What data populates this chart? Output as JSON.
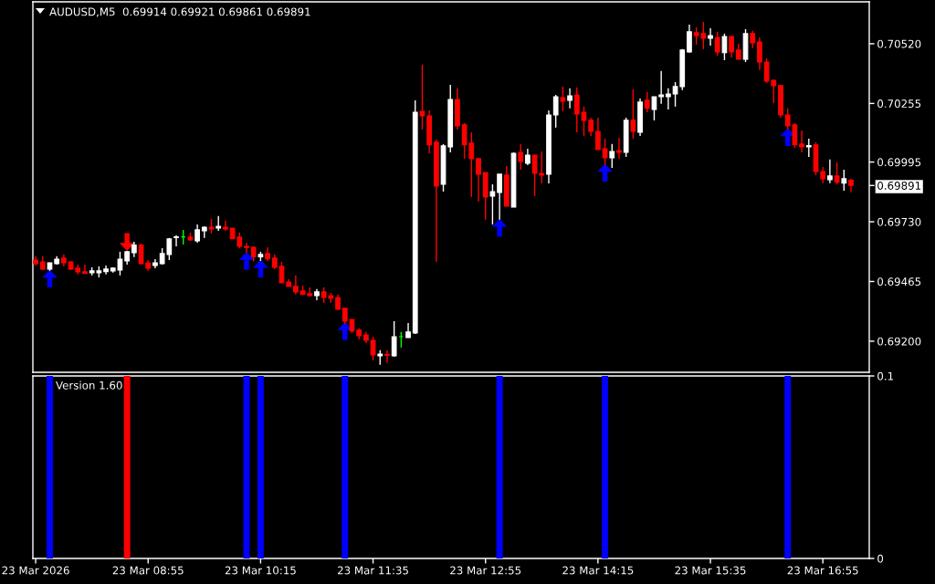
{
  "chart_data": [
    {
      "type": "candlestick",
      "title": "AUDUSD,M5  0.69914 0.69921 0.69861 0.69891",
      "x": [
        "2026-03-23T07:35",
        "2026-03-23T07:40",
        "2026-03-23T07:45",
        "2026-03-23T07:50",
        "2026-03-23T07:55",
        "2026-03-23T08:00",
        "2026-03-23T08:05",
        "2026-03-23T08:10",
        "2026-03-23T08:15",
        "2026-03-23T08:20",
        "2026-03-23T08:25",
        "2026-03-23T08:30",
        "2026-03-23T08:35",
        "2026-03-23T08:40",
        "2026-03-23T08:45",
        "2026-03-23T08:50",
        "2026-03-23T08:55",
        "2026-03-23T09:00",
        "2026-03-23T09:05",
        "2026-03-23T09:10",
        "2026-03-23T09:15",
        "2026-03-23T09:20",
        "2026-03-23T09:25",
        "2026-03-23T09:30",
        "2026-03-23T09:35",
        "2026-03-23T09:40",
        "2026-03-23T09:45",
        "2026-03-23T09:50",
        "2026-03-23T09:55",
        "2026-03-23T10:00",
        "2026-03-23T10:05",
        "2026-03-23T10:10",
        "2026-03-23T10:15",
        "2026-03-23T10:20",
        "2026-03-23T10:25",
        "2026-03-23T10:30",
        "2026-03-23T10:35",
        "2026-03-23T10:40",
        "2026-03-23T10:45",
        "2026-03-23T10:50",
        "2026-03-23T10:55",
        "2026-03-23T11:00",
        "2026-03-23T11:05",
        "2026-03-23T11:10",
        "2026-03-23T11:15",
        "2026-03-23T11:20",
        "2026-03-23T11:25",
        "2026-03-23T11:30",
        "2026-03-23T11:35",
        "2026-03-23T11:40",
        "2026-03-23T11:45",
        "2026-03-23T11:50",
        "2026-03-23T11:55",
        "2026-03-23T12:00",
        "2026-03-23T12:05",
        "2026-03-23T12:10",
        "2026-03-23T12:15",
        "2026-03-23T12:20",
        "2026-03-23T12:25",
        "2026-03-23T12:30",
        "2026-03-23T12:35",
        "2026-03-23T12:40",
        "2026-03-23T12:45",
        "2026-03-23T12:50",
        "2026-03-23T12:55",
        "2026-03-23T13:00",
        "2026-03-23T13:05",
        "2026-03-23T13:10",
        "2026-03-23T13:15",
        "2026-03-23T13:20",
        "2026-03-23T13:25",
        "2026-03-23T13:30",
        "2026-03-23T13:35",
        "2026-03-23T13:40",
        "2026-03-23T13:45",
        "2026-03-23T13:50",
        "2026-03-23T13:55",
        "2026-03-23T14:00",
        "2026-03-23T14:05",
        "2026-03-23T14:10",
        "2026-03-23T14:15",
        "2026-03-23T14:20",
        "2026-03-23T14:25",
        "2026-03-23T14:30",
        "2026-03-23T14:35",
        "2026-03-23T14:40",
        "2026-03-23T14:45",
        "2026-03-23T14:50",
        "2026-03-23T14:55",
        "2026-03-23T15:00",
        "2026-03-23T15:05",
        "2026-03-23T15:10",
        "2026-03-23T15:15",
        "2026-03-23T15:20",
        "2026-03-23T15:25",
        "2026-03-23T15:30",
        "2026-03-23T15:35",
        "2026-03-23T15:40",
        "2026-03-23T15:45",
        "2026-03-23T15:50",
        "2026-03-23T15:55",
        "2026-03-23T16:00",
        "2026-03-23T16:05",
        "2026-03-23T16:10",
        "2026-03-23T16:15",
        "2026-03-23T16:20",
        "2026-03-23T16:25",
        "2026-03-23T16:30",
        "2026-03-23T16:35",
        "2026-03-23T16:40",
        "2026-03-23T16:45",
        "2026-03-23T16:50",
        "2026-03-23T16:55",
        "2026-03-23T17:00",
        "2026-03-23T17:05",
        "2026-03-23T17:10",
        "2026-03-23T17:15"
      ],
      "ohlc": [
        [
          0.6956,
          0.69577,
          0.69536,
          0.69544
        ],
        [
          0.69552,
          0.69577,
          0.69516,
          0.6952
        ],
        [
          0.6952,
          0.69549,
          0.69512,
          0.69548
        ],
        [
          0.69544,
          0.69577,
          0.6954,
          0.69564
        ],
        [
          0.69569,
          0.69585,
          0.69532,
          0.69548
        ],
        [
          0.69552,
          0.69556,
          0.69516,
          0.6952
        ],
        [
          0.69524,
          0.6954,
          0.69496,
          0.69508
        ],
        [
          0.69508,
          0.6954,
          0.695,
          0.69501
        ],
        [
          0.69504,
          0.69528,
          0.69492,
          0.69512
        ],
        [
          0.69504,
          0.69532,
          0.69483,
          0.69512
        ],
        [
          0.69509,
          0.69536,
          0.69496,
          0.6952
        ],
        [
          0.69512,
          0.69528,
          0.69504,
          0.69524
        ],
        [
          0.69516,
          0.69597,
          0.69492,
          0.69564
        ],
        [
          0.69556,
          0.69601,
          0.6954,
          0.69597
        ],
        [
          0.69593,
          0.69641,
          0.69573,
          0.69627
        ],
        [
          0.69627,
          0.69633,
          0.6954,
          0.69544
        ],
        [
          0.69548,
          0.6956,
          0.69512,
          0.69524
        ],
        [
          0.69536,
          0.69564,
          0.69524,
          0.69548
        ],
        [
          0.69544,
          0.69613,
          0.6954,
          0.69589
        ],
        [
          0.69585,
          0.69658,
          0.6956,
          0.69654
        ],
        [
          0.6966,
          0.6967,
          0.69621,
          0.69663
        ],
        [
          0.69663,
          0.69694,
          0.69629,
          0.69663
        ],
        [
          0.69662,
          0.69682,
          0.69645,
          0.69649
        ],
        [
          0.69645,
          0.69718,
          0.69637,
          0.69694
        ],
        [
          0.6969,
          0.6971,
          0.69658,
          0.69706
        ],
        [
          0.69706,
          0.69743,
          0.69678,
          0.69698
        ],
        [
          0.69702,
          0.69755,
          0.6969,
          0.6971
        ],
        [
          0.69706,
          0.69735,
          0.6969,
          0.69698
        ],
        [
          0.69702,
          0.69702,
          0.69654,
          0.69654
        ],
        [
          0.69662,
          0.69682,
          0.69613,
          0.69621
        ],
        [
          0.69621,
          0.69637,
          0.69591,
          0.69616
        ],
        [
          0.69617,
          0.69621,
          0.69554,
          0.69574
        ],
        [
          0.69574,
          0.69597,
          0.69556,
          0.69585
        ],
        [
          0.69589,
          0.69617,
          0.69556,
          0.69565
        ],
        [
          0.69569,
          0.69585,
          0.6952,
          0.69528
        ],
        [
          0.69532,
          0.69552,
          0.69459,
          0.69459
        ],
        [
          0.69463,
          0.69475,
          0.69443,
          0.69443
        ],
        [
          0.69443,
          0.69492,
          0.69407,
          0.69419
        ],
        [
          0.69423,
          0.69447,
          0.69407,
          0.69407
        ],
        [
          0.69411,
          0.69439,
          0.69398,
          0.69402
        ],
        [
          0.69402,
          0.69431,
          0.69382,
          0.69419
        ],
        [
          0.69419,
          0.69439,
          0.6937,
          0.69394
        ],
        [
          0.69402,
          0.69415,
          0.6937,
          0.6939
        ],
        [
          0.69394,
          0.69407,
          0.69338,
          0.69342
        ],
        [
          0.69346,
          0.69346,
          0.69277,
          0.69289
        ],
        [
          0.69297,
          0.69297,
          0.69236,
          0.69245
        ],
        [
          0.69249,
          0.69257,
          0.69208,
          0.69224
        ],
        [
          0.69228,
          0.69241,
          0.69192,
          0.69204
        ],
        [
          0.69204,
          0.6922,
          0.69115,
          0.69139
        ],
        [
          0.69135,
          0.6916,
          0.69095,
          0.69143
        ],
        [
          0.69142,
          0.6916,
          0.69103,
          0.69137
        ],
        [
          0.69135,
          0.69289,
          0.69131,
          0.6922
        ],
        [
          0.6922,
          0.69241,
          0.69172,
          0.6922
        ],
        [
          0.69216,
          0.69281,
          0.69216,
          0.69241
        ],
        [
          0.69236,
          0.70269,
          0.69232,
          0.70216
        ],
        [
          0.7022,
          0.70427,
          0.70139,
          0.702
        ],
        [
          0.702,
          0.70224,
          0.70034,
          0.70071
        ],
        [
          0.70083,
          0.70095,
          0.69552,
          0.69888
        ],
        [
          0.69896,
          0.70075,
          0.69864,
          0.70067
        ],
        [
          0.70062,
          0.70338,
          0.70038,
          0.70273
        ],
        [
          0.70273,
          0.70322,
          0.70139,
          0.70156
        ],
        [
          0.7016,
          0.70168,
          0.7001,
          0.70071
        ],
        [
          0.70079,
          0.70127,
          0.6984,
          0.7001
        ],
        [
          0.7001,
          0.7001,
          0.6982,
          0.69941
        ],
        [
          0.69949,
          0.69949,
          0.69739,
          0.6984
        ],
        [
          0.69844,
          0.69896,
          0.69718,
          0.69864
        ],
        [
          0.6986,
          0.69941,
          0.69739,
          0.69941
        ],
        [
          0.69937,
          0.69977,
          0.69799,
          0.69799
        ],
        [
          0.69795,
          0.70038,
          0.69795,
          0.70034
        ],
        [
          0.70038,
          0.70075,
          0.69961,
          0.69998
        ],
        [
          0.6999,
          0.70054,
          0.69981,
          0.70026
        ],
        [
          0.70026,
          0.70026,
          0.69844,
          0.69945
        ],
        [
          0.69945,
          0.70042,
          0.699,
          0.69937
        ],
        [
          0.69941,
          0.70224,
          0.699,
          0.70204
        ],
        [
          0.70204,
          0.70293,
          0.70148,
          0.70285
        ],
        [
          0.70281,
          0.7033,
          0.7022,
          0.70265
        ],
        [
          0.70269,
          0.70322,
          0.70233,
          0.70289
        ],
        [
          0.70293,
          0.70326,
          0.70127,
          0.70208
        ],
        [
          0.70216,
          0.70241,
          0.70111,
          0.7018
        ],
        [
          0.7018,
          0.70192,
          0.70111,
          0.70131
        ],
        [
          0.70131,
          0.70192,
          0.7005,
          0.7005
        ],
        [
          0.70054,
          0.70099,
          0.69981,
          0.70014
        ],
        [
          0.70014,
          0.70075,
          0.69969,
          0.70042
        ],
        [
          0.70046,
          0.70103,
          0.7001,
          0.70038
        ],
        [
          0.70038,
          0.70192,
          0.70018,
          0.7018
        ],
        [
          0.7018,
          0.70318,
          0.70099,
          0.70131
        ],
        [
          0.70127,
          0.70277,
          0.70111,
          0.70261
        ],
        [
          0.70269,
          0.70305,
          0.70216,
          0.70233
        ],
        [
          0.70228,
          0.70285,
          0.7018,
          0.70285
        ],
        [
          0.70285,
          0.70399,
          0.70253,
          0.70293
        ],
        [
          0.70285,
          0.70322,
          0.70228,
          0.70297
        ],
        [
          0.70297,
          0.7035,
          0.70241,
          0.7033
        ],
        [
          0.7033,
          0.70496,
          0.70314,
          0.70492
        ],
        [
          0.70484,
          0.70605,
          0.7048,
          0.70573
        ],
        [
          0.70569,
          0.70593,
          0.70516,
          0.70556
        ],
        [
          0.70565,
          0.70617,
          0.70496,
          0.70544
        ],
        [
          0.70544,
          0.70589,
          0.70512,
          0.70556
        ],
        [
          0.70548,
          0.70573,
          0.70467,
          0.70484
        ],
        [
          0.7048,
          0.70565,
          0.70447,
          0.70552
        ],
        [
          0.70552,
          0.70556,
          0.70459,
          0.70484
        ],
        [
          0.70492,
          0.7052,
          0.70451,
          0.70451
        ],
        [
          0.70451,
          0.70585,
          0.70439,
          0.70565
        ],
        [
          0.70565,
          0.70577,
          0.705,
          0.70524
        ],
        [
          0.70528,
          0.70548,
          0.70403,
          0.70439
        ],
        [
          0.70439,
          0.70455,
          0.70346,
          0.70354
        ],
        [
          0.70358,
          0.70362,
          0.70257,
          0.70334
        ],
        [
          0.70334,
          0.70338,
          0.70192,
          0.70204
        ],
        [
          0.70204,
          0.70233,
          0.70139,
          0.70156
        ],
        [
          0.7016,
          0.70168,
          0.70058,
          0.70071
        ],
        [
          0.70075,
          0.70135,
          0.70038,
          0.70062
        ],
        [
          0.70062,
          0.70099,
          0.70018,
          0.70068
        ],
        [
          0.70071,
          0.70083,
          0.69937,
          0.69953
        ],
        [
          0.69953,
          0.69973,
          0.69901,
          0.69921
        ],
        [
          0.69917,
          0.70006,
          0.69901,
          0.69933
        ],
        [
          0.69933,
          0.69994,
          0.69896,
          0.69905
        ],
        [
          0.69901,
          0.69961,
          0.69868,
          0.69921
        ],
        [
          0.69914,
          0.69921,
          0.69861,
          0.69891
        ]
      ],
      "colors": [
        "#ff0000",
        "#ff0000",
        "#ffffff",
        "#ffffff",
        "#ff0000",
        "#ff0000",
        "#ff0000",
        "#ff0000",
        "#ffffff",
        "#ffffff",
        "#ffffff",
        "#ffffff",
        "#ffffff",
        "#ffffff",
        "#ffffff",
        "#ff0000",
        "#ff0000",
        "#ffffff",
        "#ffffff",
        "#ffffff",
        "#ffffff",
        "#00ff00",
        "#ff0000",
        "#ffffff",
        "#ffffff",
        "#ff0000",
        "#ffffff",
        "#ff0000",
        "#ff0000",
        "#ff0000",
        "#ff0000",
        "#ff0000",
        "#ffffff",
        "#ff0000",
        "#ff0000",
        "#ff0000",
        "#ff0000",
        "#ff0000",
        "#ff0000",
        "#ff0000",
        "#ffffff",
        "#ff0000",
        "#ff0000",
        "#ff0000",
        "#ff0000",
        "#ff0000",
        "#ff0000",
        "#ff0000",
        "#ff0000",
        "#ffffff",
        "#ff0000",
        "#ffffff",
        "#00ff00",
        "#ffffff",
        "#ffffff",
        "#ff0000",
        "#ff0000",
        "#ff0000",
        "#ffffff",
        "#ffffff",
        "#ff0000",
        "#ff0000",
        "#ff0000",
        "#ff0000",
        "#ff0000",
        "#ffffff",
        "#ffffff",
        "#ff0000",
        "#ffffff",
        "#ff0000",
        "#ffffff",
        "#ff0000",
        "#ff0000",
        "#ffffff",
        "#ffffff",
        "#ff0000",
        "#ffffff",
        "#ff0000",
        "#ff0000",
        "#ff0000",
        "#ff0000",
        "#ff0000",
        "#ffffff",
        "#ff0000",
        "#ffffff",
        "#ff0000",
        "#ffffff",
        "#ff0000",
        "#ffffff",
        "#ffffff",
        "#ffffff",
        "#ffffff",
        "#ffffff",
        "#ffffff",
        "#ff0000",
        "#ff0000",
        "#ffffff",
        "#ff0000",
        "#ffffff",
        "#ff0000",
        "#ff0000",
        "#ffffff",
        "#ff0000",
        "#ff0000",
        "#ff0000",
        "#ff0000",
        "#ff0000",
        "#ff0000",
        "#ff0000",
        "#ff0000",
        "#ffffff",
        "#ff0000",
        "#ff0000",
        "#ffffff",
        "#ff0000",
        "#ffffff",
        "#ff0000"
      ],
      "series": [
        {
          "type": "scatter",
          "color": "#0000ff",
          "x": [
            "2026-03-23T07:45",
            "2026-03-23T10:05",
            "2026-03-23T10:15",
            "2026-03-23T11:15",
            "2026-03-23T13:05",
            "2026-03-23T14:20",
            "2026-03-23T16:30"
          ],
          "values": [
            0.69478,
            0.69557,
            0.69522,
            0.69245,
            0.69704,
            0.69948,
            0.70106
          ]
        },
        {
          "type": "scatter",
          "color": "#ff0000",
          "x": [
            "2026-03-23T08:40"
          ],
          "values": [
            0.6964
          ]
        }
      ],
      "marker": "triangle",
      "xlim": [
        "2026-03-23T07:33",
        "2026-03-23T17:28"
      ],
      "ylim": [
        0.69062,
        0.70706
      ],
      "yticks": [
        {
          "value": 0.692,
          "label": "0.69200"
        },
        {
          "value": 0.69465,
          "label": "0.69465"
        },
        {
          "value": 0.6973,
          "label": "0.69730"
        },
        {
          "value": 0.69891,
          "label": "0.69891"
        },
        {
          "value": 0.69995,
          "label": "0.69995"
        },
        {
          "value": 0.70255,
          "label": "0.70255"
        },
        {
          "value": 0.7052,
          "label": "0.70520"
        }
      ],
      "tick_labels": "y"
    },
    {
      "type": "bar",
      "x": [
        "2026-03-23T07:45",
        "2026-03-23T08:40",
        "2026-03-23T10:05",
        "2026-03-23T10:15",
        "2026-03-23T11:15",
        "2026-03-23T13:05",
        "2026-03-23T14:20",
        "2026-03-23T16:30"
      ],
      "values": [
        0.1,
        0.1,
        0.1,
        0.1,
        0.1,
        0.1,
        0.1,
        0.1
      ],
      "colors": [
        "#0000ff",
        "#ff0000",
        "#0000ff",
        "#0000ff",
        "#0000ff",
        "#0000ff",
        "#0000ff",
        "#0000ff"
      ],
      "xlim": [
        "2026-03-23T07:33",
        "2026-03-23T17:28"
      ],
      "xticks": [
        {
          "value": "2026-03-23T07:35",
          "label": "23 Mar 2026"
        },
        {
          "value": "2026-03-23T08:55",
          "label": "23 Mar 08:55"
        },
        {
          "value": "2026-03-23T10:15",
          "label": "23 Mar 10:15"
        },
        {
          "value": "2026-03-23T11:35",
          "label": "23 Mar 11:35"
        },
        {
          "value": "2026-03-23T12:55",
          "label": "23 Mar 12:55"
        },
        {
          "value": "2026-03-23T14:15",
          "label": "23 Mar 14:15"
        },
        {
          "value": "2026-03-23T15:35",
          "label": "23 Mar 15:35"
        },
        {
          "value": "2026-03-23T16:55",
          "label": "23 Mar 16:55"
        }
      ],
      "ylim": [
        0,
        0.1
      ],
      "yticks": [
        0,
        0.1
      ],
      "annotations": [
        "Version 1.60"
      ]
    }
  ]
}
